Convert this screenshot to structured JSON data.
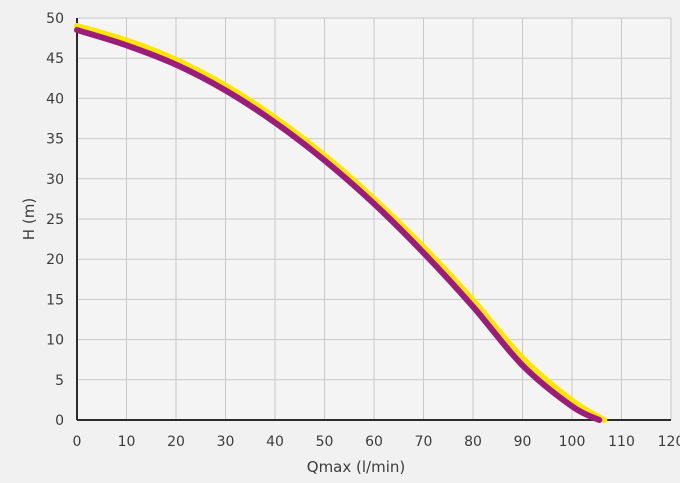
{
  "chart_data": {
    "type": "line",
    "title": "",
    "xlabel": "Qmax (l/min)",
    "ylabel": "H (m)",
    "xlim": [
      0,
      120
    ],
    "ylim": [
      0,
      50
    ],
    "x_ticks": [
      "0",
      "10",
      "20",
      "30",
      "40",
      "50",
      "60",
      "70",
      "80",
      "90",
      "100",
      "110",
      "120"
    ],
    "y_ticks": [
      "0",
      "5",
      "10",
      "15",
      "20",
      "25",
      "30",
      "35",
      "40",
      "45",
      "50"
    ],
    "grid": true,
    "legend": "none",
    "series": [
      {
        "color": "#ffe600",
        "x": [
          0,
          10,
          20,
          30,
          40,
          50,
          60,
          70,
          80,
          90,
          100,
          106.5
        ],
        "y": [
          49,
          47.2,
          44.8,
          41.6,
          37.6,
          32.9,
          27.5,
          21.5,
          14.9,
          7.7,
          2.4,
          0
        ]
      },
      {
        "color": "#9c1c7c",
        "x": [
          0,
          10,
          20,
          30,
          40,
          50,
          60,
          70,
          80,
          90,
          100,
          105.5
        ],
        "y": [
          48.5,
          46.6,
          44.2,
          41.0,
          37.0,
          32.3,
          26.9,
          20.8,
          14.1,
          6.8,
          1.7,
          0
        ]
      }
    ]
  }
}
